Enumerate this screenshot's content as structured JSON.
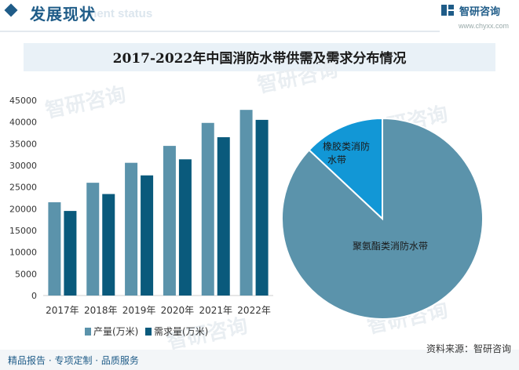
{
  "header": {
    "title": "发展现状",
    "subtitle_en": "ment status",
    "logo_name": "智研咨询",
    "logo_url": "www.chyxx.com"
  },
  "footer": {
    "left": "精品报告 · 专项定制 · 品质服务",
    "source": "资料来源：智研咨询"
  },
  "watermark": "智研咨询",
  "colors": {
    "supply": "#5b93ab",
    "demand": "#0a5a7c",
    "pie_main": "#5b93ab",
    "pie_other": "#1297d6"
  },
  "chart_data": [
    {
      "type": "bar",
      "title": "2017-2022年中国消防水带供需及需求分布情况",
      "categories": [
        "2017年",
        "2018年",
        "2019年",
        "2020年",
        "2021年",
        "2022年"
      ],
      "series": [
        {
          "name": "产量(万米)",
          "values": [
            21500,
            26000,
            30600,
            34500,
            39800,
            42800
          ]
        },
        {
          "name": "需求量(万米)",
          "values": [
            19500,
            23400,
            27700,
            31400,
            36500,
            40500
          ]
        }
      ],
      "ylim": [
        0,
        45000
      ],
      "yticks": [
        0,
        5000,
        10000,
        15000,
        20000,
        25000,
        30000,
        35000,
        40000,
        45000
      ],
      "legend": "bottom"
    },
    {
      "type": "pie",
      "slices": [
        {
          "label": "聚氨酯类消防水带",
          "value": 87
        },
        {
          "label_lines": [
            "橡胶类消防",
            "水带"
          ],
          "value": 13
        }
      ]
    }
  ]
}
